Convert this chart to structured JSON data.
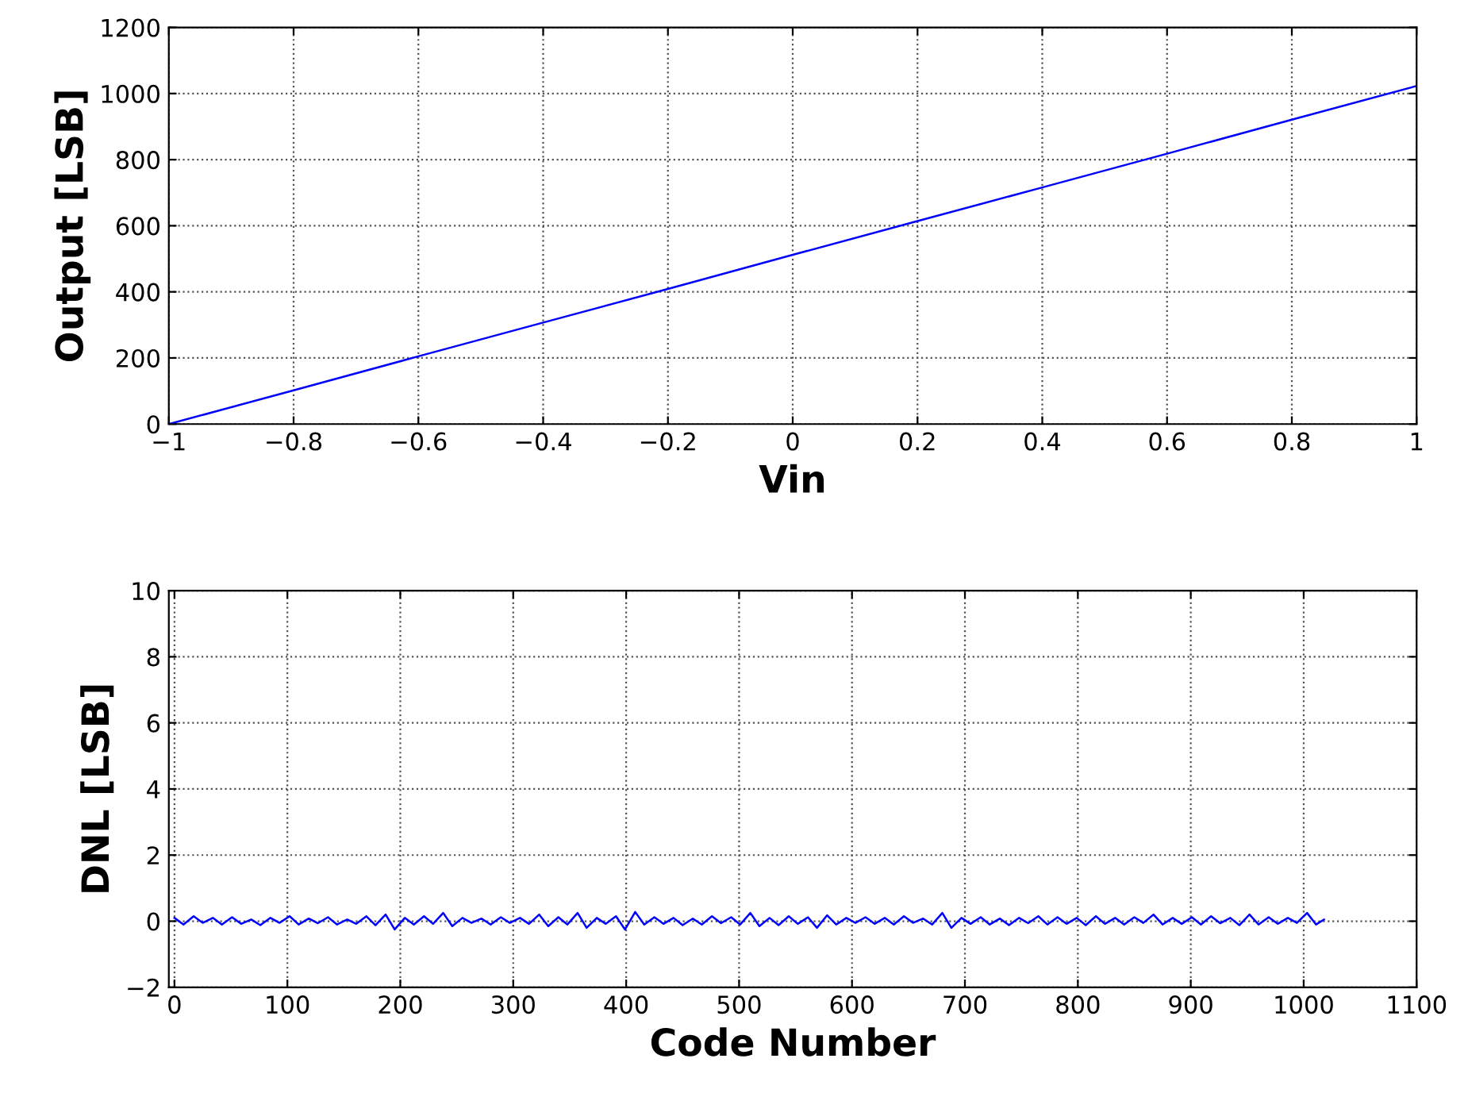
{
  "chart_data": [
    {
      "type": "line",
      "xlabel": "Vin",
      "ylabel": "Output [LSB]",
      "xlim": [
        -1,
        1
      ],
      "ylim": [
        0,
        1200
      ],
      "xticks": [
        -1,
        -0.8,
        -0.6,
        -0.4,
        -0.2,
        0,
        0.2,
        0.4,
        0.6,
        0.8,
        1
      ],
      "yticks": [
        0,
        200,
        400,
        600,
        800,
        1000,
        1200
      ],
      "grid": true,
      "line_style": "solid",
      "marker": "none",
      "series": [
        {
          "color": "#0000ff",
          "x": [
            -1,
            -0.8,
            -0.6,
            -0.4,
            -0.2,
            0,
            0.2,
            0.4,
            0.6,
            0.8,
            1
          ],
          "values": [
            0,
            102,
            205,
            307,
            409,
            512,
            614,
            716,
            818,
            921,
            1023
          ]
        }
      ]
    },
    {
      "type": "line",
      "xlabel": "Code Number",
      "ylabel": "DNL [LSB]",
      "xlim": [
        -5,
        1100
      ],
      "ylim": [
        -2,
        10
      ],
      "xticks": [
        0,
        100,
        200,
        300,
        400,
        500,
        600,
        700,
        800,
        900,
        1000,
        1100
      ],
      "yticks": [
        -2,
        0,
        2,
        4,
        6,
        8,
        10
      ],
      "grid": true,
      "line_style": "solid",
      "marker": "none",
      "series": [
        {
          "color": "#0000ff",
          "x": [
            0,
            8,
            17,
            25,
            34,
            42,
            51,
            59,
            68,
            76,
            85,
            93,
            102,
            110,
            119,
            127,
            136,
            144,
            153,
            161,
            170,
            178,
            187,
            195,
            204,
            212,
            221,
            229,
            238,
            246,
            255,
            263,
            272,
            280,
            289,
            297,
            306,
            314,
            323,
            331,
            340,
            348,
            357,
            365,
            374,
            382,
            391,
            399,
            408,
            416,
            425,
            433,
            442,
            450,
            459,
            467,
            476,
            484,
            493,
            501,
            510,
            518,
            527,
            535,
            544,
            552,
            561,
            569,
            578,
            586,
            595,
            603,
            612,
            620,
            629,
            637,
            646,
            654,
            663,
            671,
            680,
            688,
            697,
            705,
            714,
            722,
            731,
            739,
            748,
            756,
            765,
            773,
            782,
            790,
            799,
            807,
            816,
            824,
            833,
            841,
            850,
            858,
            867,
            875,
            884,
            892,
            901,
            909,
            918,
            926,
            935,
            943,
            952,
            960,
            969,
            977,
            986,
            994,
            1003,
            1011,
            1018
          ],
          "values": [
            0.1,
            -0.1,
            0.15,
            -0.05,
            0.1,
            -0.1,
            0.12,
            -0.08,
            0.05,
            -0.12,
            0.1,
            -0.05,
            0.15,
            -0.1,
            0.08,
            -0.06,
            0.12,
            -0.1,
            0.05,
            -0.08,
            0.15,
            -0.12,
            0.2,
            -0.25,
            0.1,
            -0.1,
            0.15,
            -0.08,
            0.25,
            -0.15,
            0.1,
            -0.05,
            0.08,
            -0.1,
            0.12,
            -0.05,
            0.1,
            -0.08,
            0.2,
            -0.15,
            0.12,
            -0.1,
            0.25,
            -0.2,
            0.1,
            -0.08,
            0.15,
            -0.25,
            0.28,
            -0.1,
            0.12,
            -0.08,
            0.1,
            -0.12,
            0.08,
            -0.1,
            0.15,
            -0.06,
            0.12,
            -0.1,
            0.25,
            -0.15,
            0.1,
            -0.12,
            0.15,
            -0.08,
            0.12,
            -0.2,
            0.18,
            -0.1,
            0.1,
            -0.05,
            0.12,
            -0.08,
            0.1,
            -0.1,
            0.15,
            -0.05,
            0.08,
            -0.1,
            0.25,
            -0.2,
            0.1,
            -0.08,
            0.12,
            -0.1,
            0.08,
            -0.12,
            0.1,
            -0.06,
            0.15,
            -0.1,
            0.12,
            -0.08,
            0.1,
            -0.12,
            0.15,
            -0.08,
            0.1,
            -0.1,
            0.12,
            -0.05,
            0.2,
            -0.1,
            0.1,
            -0.08,
            0.12,
            -0.1,
            0.15,
            -0.06,
            0.1,
            -0.12,
            0.2,
            -0.1,
            0.12,
            -0.08,
            0.1,
            -0.05,
            0.25,
            -0.1,
            0.05
          ]
        }
      ]
    }
  ]
}
